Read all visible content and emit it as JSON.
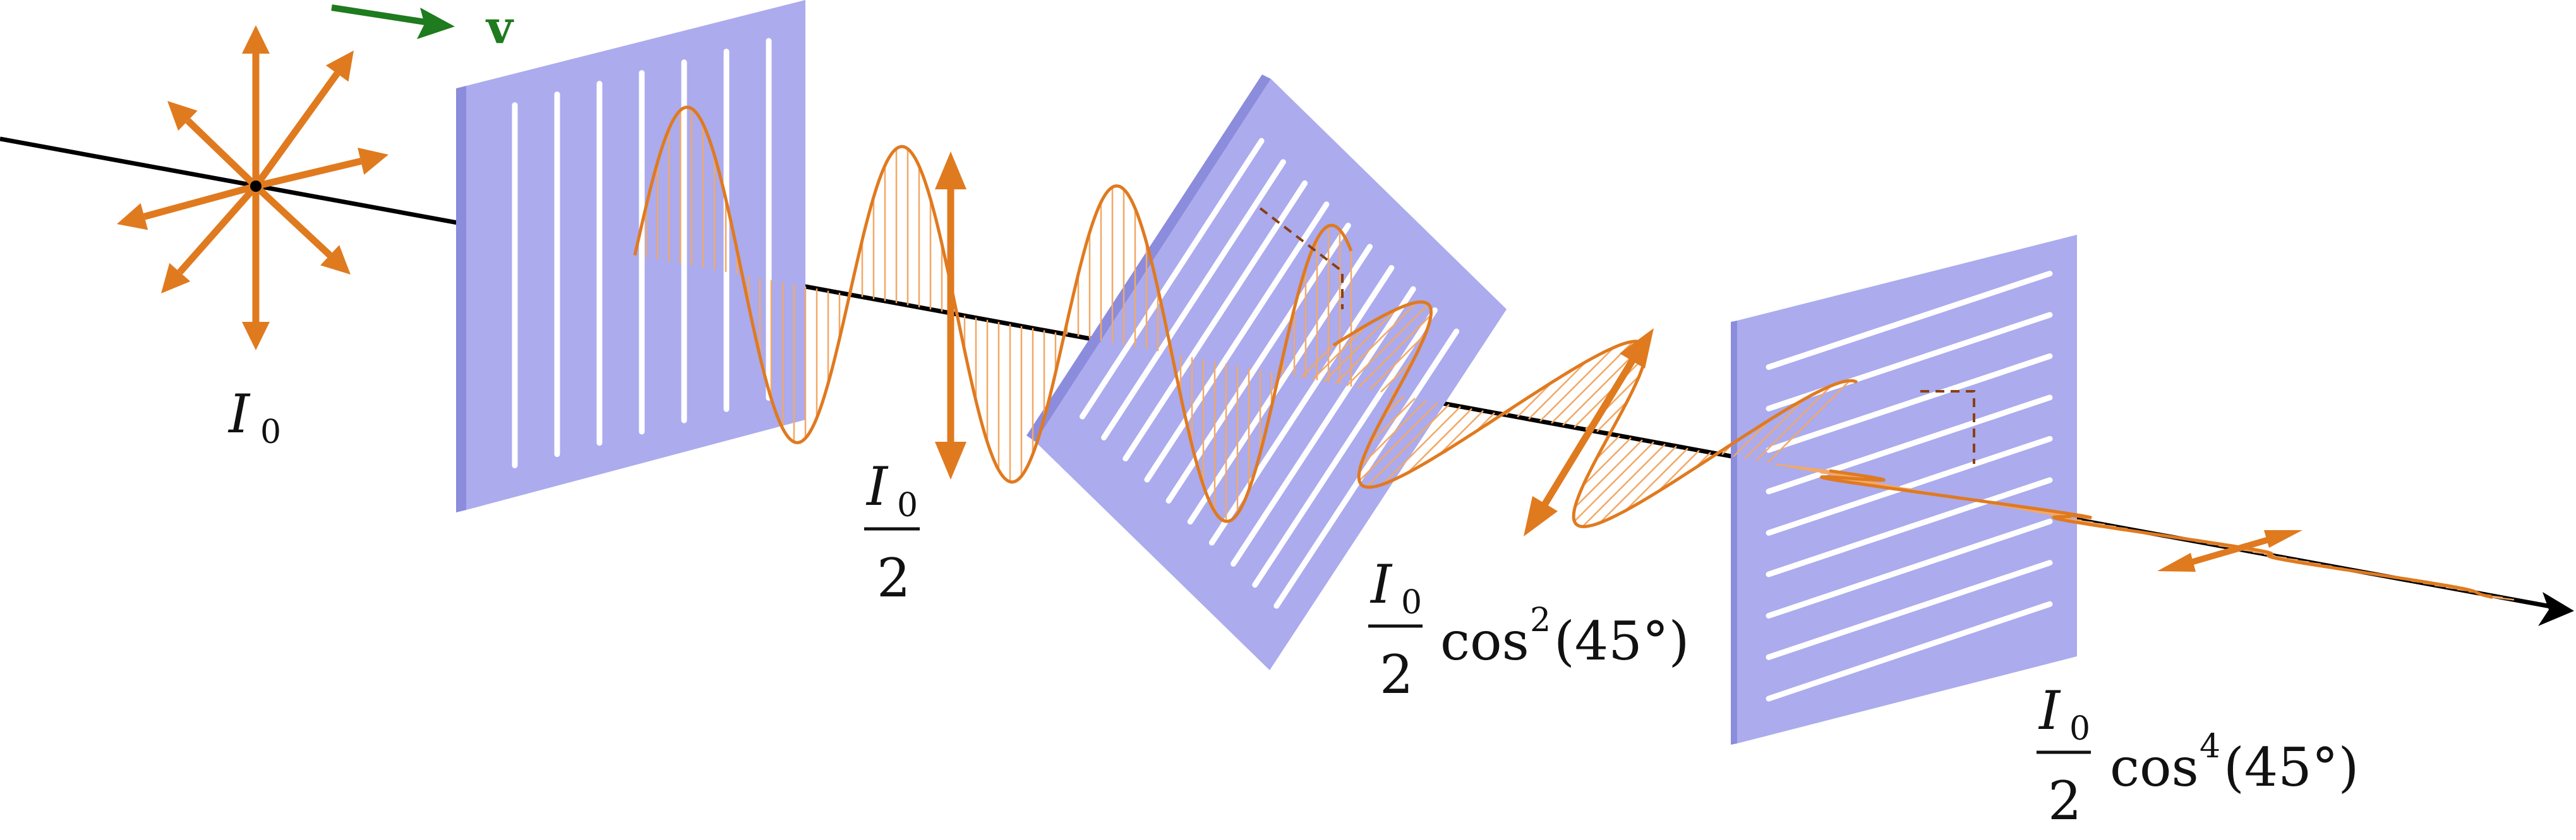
{
  "colors": {
    "wave": "#E07A1F",
    "polarizer": "#ABABEE",
    "polarizer_edge": "#8C8CDD",
    "axis": "#000000",
    "velocity": "#1E7B1E",
    "slit": "#ffffff"
  },
  "velocity_label": "v",
  "intensity_labels": [
    {
      "symbol": "I",
      "subscript": "0"
    },
    {
      "symbol": "I",
      "subscript": "0",
      "denominator": "2"
    },
    {
      "symbol": "I",
      "subscript": "0",
      "denominator": "2",
      "func": "cos",
      "power": "2",
      "arg": "(45°)"
    },
    {
      "symbol": "I",
      "subscript": "0",
      "denominator": "2",
      "func": "cos",
      "power": "4",
      "arg": "(45°)"
    }
  ],
  "polarizers": [
    {
      "orientation": "vertical"
    },
    {
      "orientation": "diagonal"
    },
    {
      "orientation": "horizontal"
    }
  ]
}
